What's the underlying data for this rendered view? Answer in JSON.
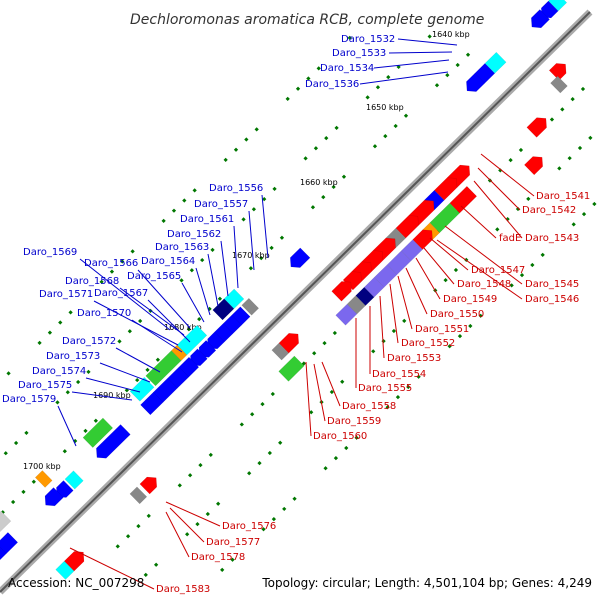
{
  "title": "Dechloromonas aromatica RCB, complete genome",
  "footer": {
    "accession": "Accession: NC_007298",
    "topology": "Topology: circular; Length: 4,501,104 bp; Genes: 4,249"
  },
  "scale_labels": [
    "1640 kbp",
    "1650 kbp",
    "1660 kbp",
    "1670 kbp",
    "1680 kbp",
    "1690 kbp",
    "1700 kbp"
  ],
  "blue_labels": [
    "Daro_1532",
    "Daro_1533",
    "Daro_1534",
    "Daro_1536",
    "Daro_1556",
    "Daro_1557",
    "Daro_1561",
    "Daro_1562",
    "Daro_1563",
    "Daro_1564",
    "Daro_1565",
    "Daro_1569",
    "Daro_1566",
    "Daro_1568",
    "Daro_1567",
    "Daro_1571",
    "Daro_1570",
    "Daro_1572",
    "Daro_1573",
    "Daro_1574",
    "Daro_1575",
    "Daro_1579"
  ],
  "red_labels": [
    "Daro_1541",
    "Daro_1542",
    "fadE",
    "Daro_1543",
    "Daro_1547",
    "Daro_1545",
    "Daro_1548",
    "Daro_1546",
    "Daro_1549",
    "Daro_1550",
    "Daro_1551",
    "Daro_1552",
    "Daro_1553",
    "Daro_1554",
    "Daro_1555",
    "Daro_1558",
    "Daro_1559",
    "Daro_1560",
    "Daro_1576",
    "Daro_1577",
    "Daro_1578",
    "Daro_1583"
  ],
  "colors": {
    "backbone": "#999999",
    "forward_gene": "#0000ff",
    "reverse_gene": "#ff0000",
    "cds_green": "#33cc33",
    "cds_cyan": "#00ffff",
    "cds_purple": "#7b68ee",
    "cds_navy": "#000080",
    "cds_gray": "#888888",
    "cds_orange": "#ff9900",
    "tick_green": "#007700",
    "blue_text": "#0000cc",
    "red_text": "#cc0000"
  }
}
